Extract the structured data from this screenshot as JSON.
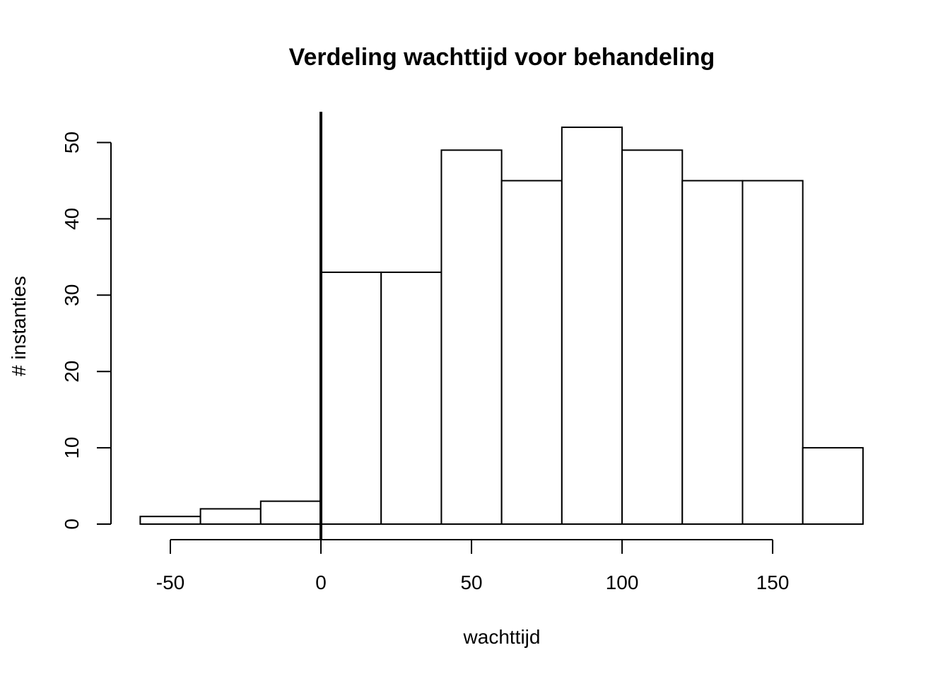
{
  "chart_data": {
    "type": "bar",
    "title": "Verdeling wachttijd voor behandeling",
    "xlabel": "wachttijd",
    "ylabel": "# instanties",
    "bins": [
      {
        "from": -60,
        "to": -40,
        "count": 1
      },
      {
        "from": -40,
        "to": -20,
        "count": 2
      },
      {
        "from": -20,
        "to": 0,
        "count": 3
      },
      {
        "from": 0,
        "to": 20,
        "count": 33
      },
      {
        "from": 20,
        "to": 40,
        "count": 33
      },
      {
        "from": 40,
        "to": 60,
        "count": 49
      },
      {
        "from": 60,
        "to": 80,
        "count": 45
      },
      {
        "from": 80,
        "to": 100,
        "count": 52
      },
      {
        "from": 100,
        "to": 120,
        "count": 49
      },
      {
        "from": 120,
        "to": 140,
        "count": 45
      },
      {
        "from": 140,
        "to": 160,
        "count": 45
      },
      {
        "from": 160,
        "to": 180,
        "count": 10
      }
    ],
    "x_ticks": [
      -50,
      0,
      50,
      100,
      150
    ],
    "y_ticks": [
      0,
      10,
      20,
      30,
      40,
      50
    ],
    "xlim": [
      -60,
      180
    ],
    "ylim": [
      0,
      54
    ],
    "reference_line_x": 0,
    "bar_fill": "#ffffff",
    "bar_stroke": "#000000",
    "grid": false,
    "legend": "none"
  }
}
